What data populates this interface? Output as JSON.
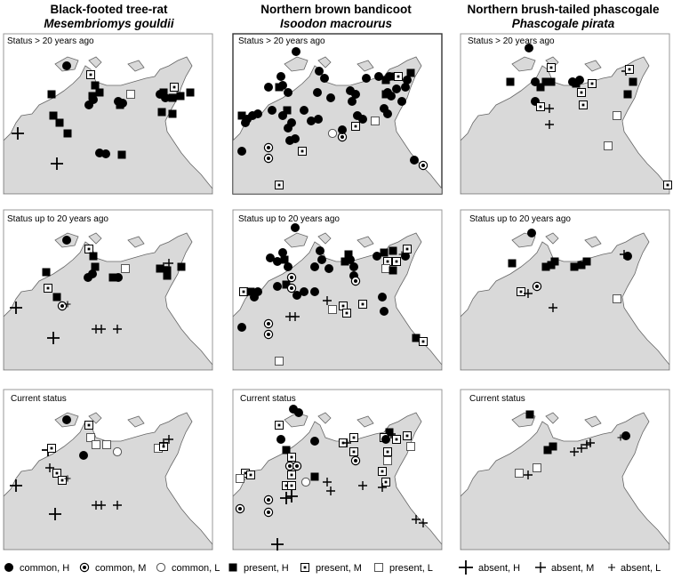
{
  "columns": [
    {
      "common_name": "Black-footed tree-rat",
      "latin_name": "Mesembriomys gouldii"
    },
    {
      "common_name": "Northern brown bandicoot",
      "latin_name": "Isoodon macrourus"
    },
    {
      "common_name": "Northern brush-tailed phascogale",
      "latin_name": "Phascogale pirata"
    }
  ],
  "row_labels": [
    "Status > 20 years ago",
    "Status up to 20 years ago",
    "Current status"
  ],
  "legend": [
    {
      "symbol": "dot-filled",
      "label": "common, H"
    },
    {
      "symbol": "dot-ring",
      "label": "common, M"
    },
    {
      "symbol": "dot-open",
      "label": "common, L"
    },
    {
      "symbol": "square-filled",
      "label": "present, H"
    },
    {
      "symbol": "square-dot",
      "label": "present, M"
    },
    {
      "symbol": "square-open",
      "label": "present, L"
    },
    {
      "symbol": "plus-large",
      "label": "absent, H"
    },
    {
      "symbol": "plus-medium",
      "label": "absent, M"
    },
    {
      "symbol": "plus-small",
      "label": "absent, L"
    }
  ],
  "colors": {
    "land": "#d9d9d9",
    "coast": "#666666",
    "frame": "#999999",
    "highlight_frame": "#333333",
    "symbol": "#000000"
  }
}
